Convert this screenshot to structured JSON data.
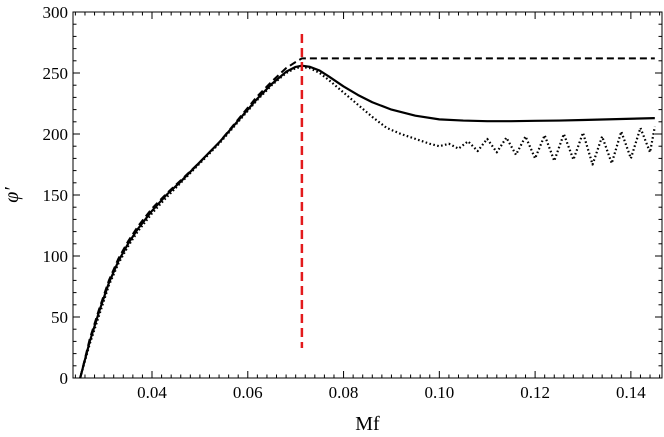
{
  "chart_data": {
    "type": "line",
    "title": "",
    "xlabel": "Mf",
    "ylabel": "φ′",
    "xlim": [
      0.0235,
      0.1465
    ],
    "ylim": [
      0,
      300
    ],
    "grid": false,
    "legend": "none",
    "x_ticks": [
      0.04,
      0.06,
      0.08,
      0.1,
      0.12,
      0.14
    ],
    "x_tick_labels": [
      "0.04",
      "0.06",
      "0.08",
      "0.10",
      "0.12",
      "0.14"
    ],
    "y_ticks": [
      0,
      50,
      100,
      150,
      200,
      250,
      300
    ],
    "y_tick_labels": [
      "0",
      "50",
      "100",
      "150",
      "200",
      "250",
      "300"
    ],
    "vline": {
      "x": 0.0713,
      "color": "#e31a1c",
      "style": "dashed"
    },
    "series": [
      {
        "style": "solid",
        "color": "#000000",
        "x": [
          0.025,
          0.027,
          0.029,
          0.031,
          0.033,
          0.035,
          0.037,
          0.04,
          0.043,
          0.046,
          0.05,
          0.054,
          0.058,
          0.062,
          0.065,
          0.068,
          0.07,
          0.0713,
          0.073,
          0.075,
          0.077,
          0.08,
          0.083,
          0.086,
          0.09,
          0.095,
          0.1,
          0.105,
          0.11,
          0.115,
          0.12,
          0.125,
          0.13,
          0.135,
          0.14,
          0.145
        ],
        "y": [
          0,
          30,
          55,
          78,
          96,
          110,
          122,
          137,
          150,
          161,
          177,
          193,
          211,
          229,
          241,
          251,
          255,
          256,
          255,
          252,
          247,
          239,
          232,
          226,
          220,
          215,
          212,
          211,
          210.5,
          210.5,
          210.8,
          211,
          211.5,
          212,
          212.5,
          213
        ]
      },
      {
        "style": "dashed",
        "color": "#000000",
        "x": [
          0.025,
          0.027,
          0.029,
          0.031,
          0.033,
          0.035,
          0.037,
          0.04,
          0.043,
          0.046,
          0.05,
          0.054,
          0.058,
          0.062,
          0.065,
          0.068,
          0.07,
          0.0713,
          0.072,
          0.08,
          0.09,
          0.1,
          0.11,
          0.12,
          0.13,
          0.14,
          0.145
        ],
        "y": [
          0,
          32,
          57,
          80,
          98,
          112,
          124,
          139,
          151,
          162,
          177,
          193,
          212,
          231,
          243,
          254,
          259,
          262,
          262,
          262,
          262,
          262,
          262,
          262,
          262,
          262,
          262
        ]
      },
      {
        "style": "dotted",
        "color": "#000000",
        "x": [
          0.025,
          0.027,
          0.029,
          0.031,
          0.033,
          0.035,
          0.037,
          0.04,
          0.043,
          0.046,
          0.05,
          0.054,
          0.058,
          0.062,
          0.065,
          0.068,
          0.07,
          0.0713,
          0.073,
          0.075,
          0.077,
          0.08,
          0.083,
          0.086,
          0.089,
          0.092,
          0.095,
          0.098,
          0.1,
          0.102,
          0.104,
          0.106,
          0.108,
          0.11,
          0.112,
          0.114,
          0.116,
          0.118,
          0.12,
          0.122,
          0.124,
          0.126,
          0.128,
          0.13,
          0.132,
          0.134,
          0.136,
          0.138,
          0.14,
          0.142,
          0.144,
          0.145
        ],
        "y": [
          0,
          28,
          52,
          76,
          94,
          108,
          120,
          135,
          148,
          160,
          176,
          192,
          210,
          228,
          240,
          250,
          254,
          255,
          254,
          250,
          244,
          234,
          224,
          214,
          205,
          200,
          196,
          192,
          190,
          192,
          188,
          194,
          186,
          196,
          185,
          197,
          183,
          198,
          180,
          199,
          178,
          200,
          179,
          201,
          175,
          198,
          176,
          202,
          180,
          205,
          185,
          206
        ]
      }
    ]
  }
}
